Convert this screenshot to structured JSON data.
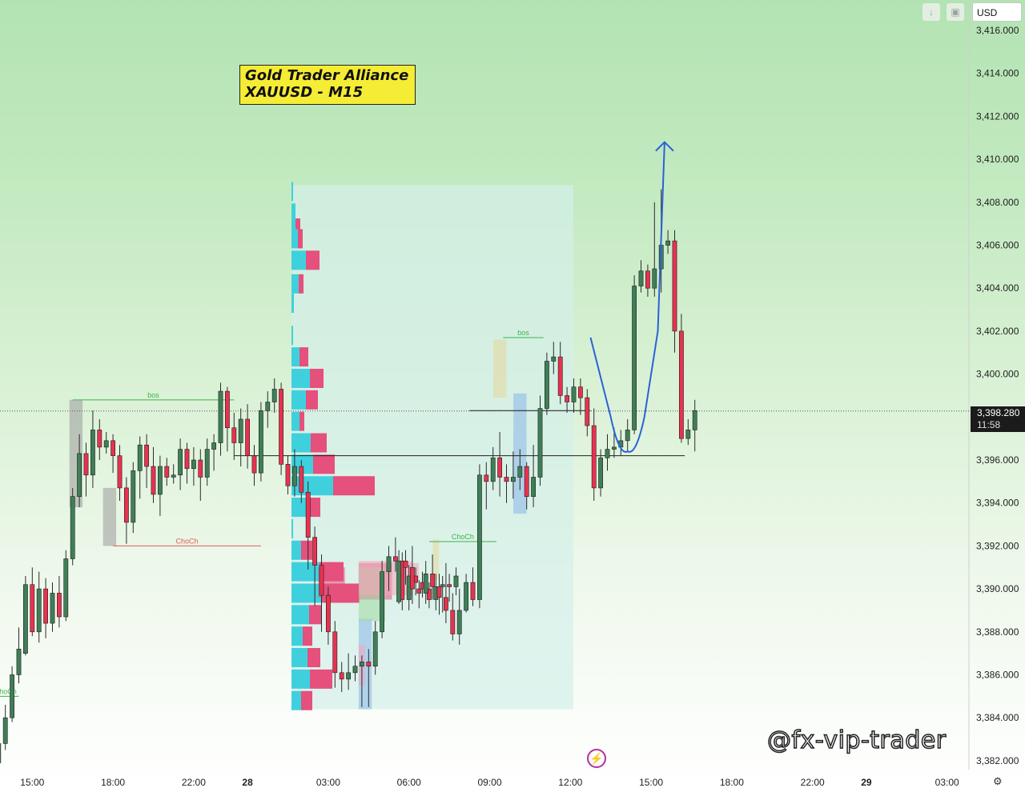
{
  "header": {
    "title_line1": "Gold Trader Alliance",
    "title_line2": "XAUUSD - M15",
    "currency": "USD"
  },
  "price_tag": {
    "price": "3,398.280",
    "countdown": "11:58"
  },
  "watermark": "@fx-vip-trader",
  "icons": {
    "toolbar": [
      "arrow-down-icon",
      "screenshot-icon"
    ],
    "bottom": [
      "lightning-icon",
      "settings-icon"
    ]
  },
  "colors": {
    "bull": "#3f7f57",
    "bear": "#e8324f",
    "wick": "#2b2b2b",
    "vp_up": "#3fd0de",
    "vp_down": "#e5507c",
    "projection": "#2a62d8",
    "structure_green": "#3cb24a",
    "structure_red": "#e05a5a",
    "box_yellow": "#e6d79c",
    "box_grey": "#9a9a9a",
    "box_blue": "#89b6ea"
  },
  "chart_data": {
    "type": "candlestick",
    "symbol": "XAUUSD",
    "timeframe": "M15",
    "y_axis": {
      "ticks": [
        "3,416.000",
        "3,414.000",
        "3,412.000",
        "3,410.000",
        "3,408.000",
        "3,406.000",
        "3,404.000",
        "3,402.000",
        "3,400.000",
        "3,398.000",
        "3,396.000",
        "3,394.000",
        "3,392.000",
        "3,390.000",
        "3,388.000",
        "3,386.000",
        "3,384.000",
        "3,382.000"
      ],
      "ylim": [
        3381.3,
        3417.5
      ]
    },
    "x_axis": {
      "labels": [
        {
          "text": "15:00",
          "idx": 5
        },
        {
          "text": "18:00",
          "idx": 17
        },
        {
          "text": "22:00",
          "idx": 29
        },
        {
          "text": "28",
          "idx": 37,
          "bold": true
        },
        {
          "text": "03:00",
          "idx": 49
        },
        {
          "text": "06:00",
          "idx": 61
        },
        {
          "text": "09:00",
          "idx": 73
        },
        {
          "text": "12:00",
          "idx": 85
        },
        {
          "text": "15:00",
          "idx": 97
        },
        {
          "text": "18:00",
          "idx": 109
        },
        {
          "text": "22:00",
          "idx": 121
        },
        {
          "text": "29",
          "idx": 129,
          "bold": true
        },
        {
          "text": "03:00",
          "idx": 141
        }
      ]
    },
    "candles": [
      [
        3381.9,
        3382.8,
        3381.5,
        3383.3
      ],
      [
        3382.8,
        3384.0,
        3382.5,
        3384.6
      ],
      [
        3384.0,
        3386.0,
        3383.8,
        3386.4
      ],
      [
        3386.0,
        3387.2,
        3385.6,
        3388.2
      ],
      [
        3387.0,
        3390.2,
        3386.9,
        3390.6
      ],
      [
        3390.2,
        3388.0,
        3387.8,
        3391.0
      ],
      [
        3388.0,
        3390.0,
        3387.5,
        3390.8
      ],
      [
        3390.0,
        3388.4,
        3387.7,
        3390.5
      ],
      [
        3388.4,
        3389.8,
        3388.0,
        3390.3
      ],
      [
        3389.8,
        3388.7,
        3388.2,
        3390.6
      ],
      [
        3388.7,
        3391.4,
        3388.5,
        3391.8
      ],
      [
        3391.4,
        3394.3,
        3391.1,
        3394.7
      ],
      [
        3394.3,
        3396.3,
        3393.8,
        3397.2
      ],
      [
        3396.3,
        3395.3,
        3394.3,
        3396.8
      ],
      [
        3395.3,
        3397.4,
        3394.7,
        3398.3
      ],
      [
        3397.4,
        3396.6,
        3396.0,
        3397.9
      ],
      [
        3396.6,
        3396.9,
        3396.3,
        3397.3
      ],
      [
        3396.9,
        3396.2,
        3395.4,
        3397.2
      ],
      [
        3396.2,
        3394.7,
        3394.1,
        3396.7
      ],
      [
        3394.7,
        3393.1,
        3392.1,
        3395.2
      ],
      [
        3393.1,
        3395.5,
        3392.6,
        3395.9
      ],
      [
        3395.5,
        3396.7,
        3394.2,
        3397.1
      ],
      [
        3396.7,
        3395.7,
        3394.7,
        3397.2
      ],
      [
        3395.7,
        3394.4,
        3394.0,
        3396.6
      ],
      [
        3394.4,
        3395.7,
        3393.4,
        3396.2
      ],
      [
        3395.7,
        3395.2,
        3394.8,
        3396.1
      ],
      [
        3395.2,
        3395.3,
        3394.9,
        3395.8
      ],
      [
        3395.3,
        3396.5,
        3394.6,
        3397.0
      ],
      [
        3396.5,
        3395.6,
        3394.9,
        3396.8
      ],
      [
        3395.6,
        3396.0,
        3394.8,
        3396.6
      ],
      [
        3396.0,
        3395.2,
        3394.1,
        3396.5
      ],
      [
        3395.2,
        3396.5,
        3394.8,
        3397.0
      ],
      [
        3396.5,
        3396.8,
        3395.5,
        3397.2
      ],
      [
        3396.8,
        3399.2,
        3396.2,
        3399.6
      ],
      [
        3399.2,
        3397.5,
        3396.4,
        3399.4
      ],
      [
        3397.5,
        3396.8,
        3396.0,
        3398.2
      ],
      [
        3396.8,
        3397.9,
        3395.7,
        3398.4
      ],
      [
        3397.9,
        3396.2,
        3395.6,
        3398.6
      ],
      [
        3396.2,
        3395.4,
        3394.8,
        3396.7
      ],
      [
        3395.4,
        3398.3,
        3395.0,
        3398.7
      ],
      [
        3398.3,
        3398.7,
        3397.5,
        3399.2
      ],
      [
        3398.7,
        3399.3,
        3398.2,
        3399.8
      ],
      [
        3399.3,
        3395.8,
        3395.3,
        3399.6
      ],
      [
        3395.8,
        3394.8,
        3394.4,
        3396.2
      ],
      [
        3394.8,
        3395.7,
        3394.3,
        3396.5
      ],
      [
        3395.7,
        3394.5,
        3394.0,
        3396.0
      ],
      [
        3394.5,
        3392.4,
        3390.9,
        3395.0
      ],
      [
        3392.4,
        3391.1,
        3389.2,
        3392.9
      ],
      [
        3391.1,
        3389.7,
        3388.0,
        3391.6
      ],
      [
        3389.7,
        3388.0,
        3387.4,
        3390.1
      ],
      [
        3388.0,
        3386.1,
        3385.4,
        3388.5
      ],
      [
        3386.1,
        3385.8,
        3385.2,
        3386.6
      ],
      [
        3385.8,
        3386.1,
        3385.3,
        3387.0
      ],
      [
        3386.1,
        3386.4,
        3385.7,
        3386.9
      ],
      [
        3386.4,
        3386.6,
        3384.5,
        3386.9
      ],
      [
        3386.6,
        3386.4,
        3384.5,
        3387.2
      ],
      [
        3386.4,
        3388.0,
        3386.0,
        3388.5
      ],
      [
        3388.0,
        3390.8,
        3387.7,
        3391.3
      ],
      [
        3390.8,
        3391.5,
        3389.9,
        3392.0
      ],
      [
        3391.5,
        3391.3,
        3390.8,
        3392.4
      ],
      [
        3391.3,
        3389.5,
        3389.0,
        3391.7
      ],
      [
        3389.5,
        3390.6,
        3389.0,
        3391.1
      ],
      [
        3390.6,
        3390.3,
        3389.7,
        3391.0
      ],
      [
        3390.3,
        3390.0,
        3389.6,
        3390.8
      ],
      [
        3390.0,
        3389.5,
        3389.1,
        3390.3
      ],
      [
        3389.5,
        3390.1,
        3389.0,
        3390.7
      ],
      [
        3390.1,
        3390.2,
        3388.9,
        3390.6
      ],
      [
        3390.2,
        3390.1,
        3389.4,
        3390.7
      ],
      [
        3390.1,
        3390.6,
        3389.7,
        3391.0
      ]
    ],
    "candles_right": [
      [
        3389.4,
        3391.3,
        3389.3,
        3391.8
      ],
      [
        3391.3,
        3391.0,
        3390.2,
        3391.8
      ],
      [
        3391.0,
        3390.0,
        3389.3,
        3392.0
      ],
      [
        3390.0,
        3389.8,
        3389.1,
        3390.4
      ],
      [
        3389.8,
        3390.7,
        3389.3,
        3391.3
      ],
      [
        3390.7,
        3390.1,
        3389.5,
        3391.6
      ],
      [
        3390.1,
        3389.6,
        3388.8,
        3390.7
      ],
      [
        3389.6,
        3389.0,
        3388.4,
        3391.2
      ],
      [
        3389.0,
        3387.9,
        3387.6,
        3389.8
      ],
      [
        3387.9,
        3389.0,
        3387.4,
        3390.0
      ],
      [
        3389.0,
        3390.3,
        3388.9,
        3390.7
      ],
      [
        3390.3,
        3389.5,
        3389.2,
        3391.0
      ],
      [
        3389.5,
        3395.3,
        3389.1,
        3395.8
      ],
      [
        3395.3,
        3395.0,
        3393.7,
        3395.9
      ],
      [
        3395.0,
        3396.1,
        3394.6,
        3396.6
      ],
      [
        3396.1,
        3395.2,
        3394.3,
        3397.3
      ],
      [
        3395.2,
        3395.0,
        3394.0,
        3395.8
      ],
      [
        3395.0,
        3395.2,
        3394.2,
        3396.4
      ],
      [
        3395.2,
        3395.7,
        3394.6,
        3396.5
      ],
      [
        3395.7,
        3394.3,
        3393.7,
        3395.9
      ],
      [
        3394.3,
        3395.2,
        3393.8,
        3396.7
      ],
      [
        3395.2,
        3398.4,
        3394.8,
        3399.0
      ],
      [
        3398.4,
        3400.6,
        3398.1,
        3401.0
      ],
      [
        3400.6,
        3400.8,
        3400.0,
        3401.5
      ],
      [
        3400.8,
        3399.0,
        3398.6,
        3401.5
      ],
      [
        3399.0,
        3398.7,
        3398.2,
        3399.4
      ],
      [
        3398.7,
        3399.4,
        3398.2,
        3399.8
      ],
      [
        3399.4,
        3398.9,
        3398.1,
        3399.8
      ],
      [
        3398.9,
        3397.6,
        3397.1,
        3399.3
      ],
      [
        3397.6,
        3394.7,
        3394.1,
        3398.4
      ],
      [
        3394.7,
        3396.1,
        3394.3,
        3396.5
      ],
      [
        3396.1,
        3396.5,
        3395.5,
        3397.2
      ],
      [
        3396.5,
        3396.6,
        3396.1,
        3397.5
      ],
      [
        3396.6,
        3396.9,
        3396.2,
        3397.4
      ],
      [
        3396.9,
        3397.4,
        3396.4,
        3397.9
      ],
      [
        3397.4,
        3404.1,
        3397.2,
        3404.6
      ],
      [
        3404.1,
        3404.8,
        3403.8,
        3405.3
      ],
      [
        3404.8,
        3404.0,
        3403.6,
        3405.1
      ],
      [
        3404.0,
        3404.9,
        3403.6,
        3408.0
      ],
      [
        3404.9,
        3406.0,
        3403.8,
        3408.6
      ],
      [
        3406.0,
        3406.2,
        3405.6,
        3406.7
      ],
      [
        3406.2,
        3402.0,
        3401.0,
        3406.7
      ],
      [
        3402.0,
        3397.0,
        3396.8,
        3402.8
      ],
      [
        3397.0,
        3397.4,
        3396.7,
        3397.9
      ],
      [
        3397.4,
        3398.3,
        3396.4,
        3398.8
      ]
    ],
    "annotations": [
      {
        "type": "structure",
        "label": "bos",
        "price": 3398.8,
        "from_idx": 11,
        "to_idx": 35,
        "color": "green"
      },
      {
        "type": "structure",
        "label": "ChoCh",
        "price": 3392.0,
        "from_idx": 17,
        "to_idx": 39,
        "color": "red"
      },
      {
        "type": "structure",
        "label": "ChoCh",
        "price": 3392.2,
        "from_idx": 64,
        "to_idx": 74,
        "color": "green"
      },
      {
        "type": "structure",
        "label": "bos",
        "price": 3401.7,
        "from_idx": 75,
        "to_idx": 81,
        "color": "green"
      },
      {
        "type": "structure",
        "label": "ChoCh",
        "price": 3385.0,
        "from_idx": -1,
        "to_idx": 3,
        "color": "green"
      },
      {
        "type": "level",
        "price": 3396.2,
        "from_idx": 35,
        "to_idx": 102
      },
      {
        "type": "level",
        "price": 3398.3,
        "from_idx": 70,
        "to_idx": 88
      }
    ],
    "projection": {
      "points": [
        [
          88,
          3401.7
        ],
        [
          91,
          3398.0
        ],
        [
          93.5,
          3396.4
        ],
        [
          96,
          3398.0
        ],
        [
          98,
          3402.0
        ],
        [
          99,
          3410.8
        ]
      ]
    }
  }
}
